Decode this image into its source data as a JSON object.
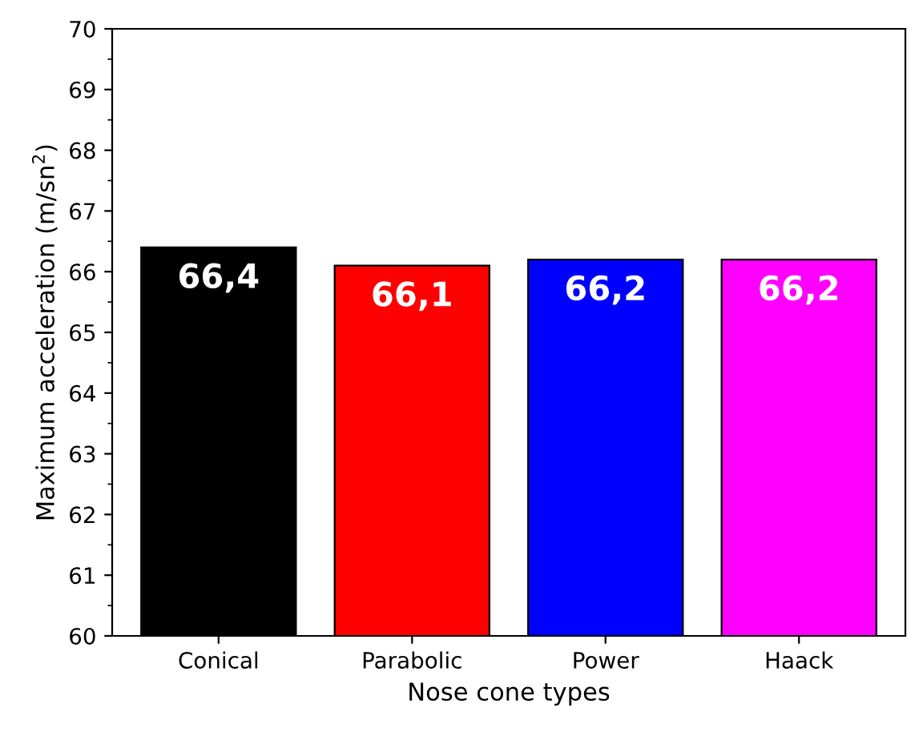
{
  "chart_data": {
    "type": "bar",
    "xlabel": "Nose cone types",
    "ylabel": "Maximum acceleration (m/sn$^{2}$)",
    "categories": [
      "Conical",
      "Parabolic",
      "Power",
      "Haack"
    ],
    "values": [
      66.4,
      66.1,
      66.2,
      66.2
    ],
    "colors": [
      "#000000",
      "#ff0000",
      "#0000ff",
      "#ff00ff"
    ],
    "value_labels": [
      "66,4",
      "66,1",
      "66,2",
      "66,2"
    ],
    "ylim": [
      60,
      70
    ],
    "yticks": [
      60,
      61,
      62,
      63,
      64,
      65,
      66,
      67,
      68,
      69,
      70
    ],
    "grid": false,
    "legend": false
  }
}
